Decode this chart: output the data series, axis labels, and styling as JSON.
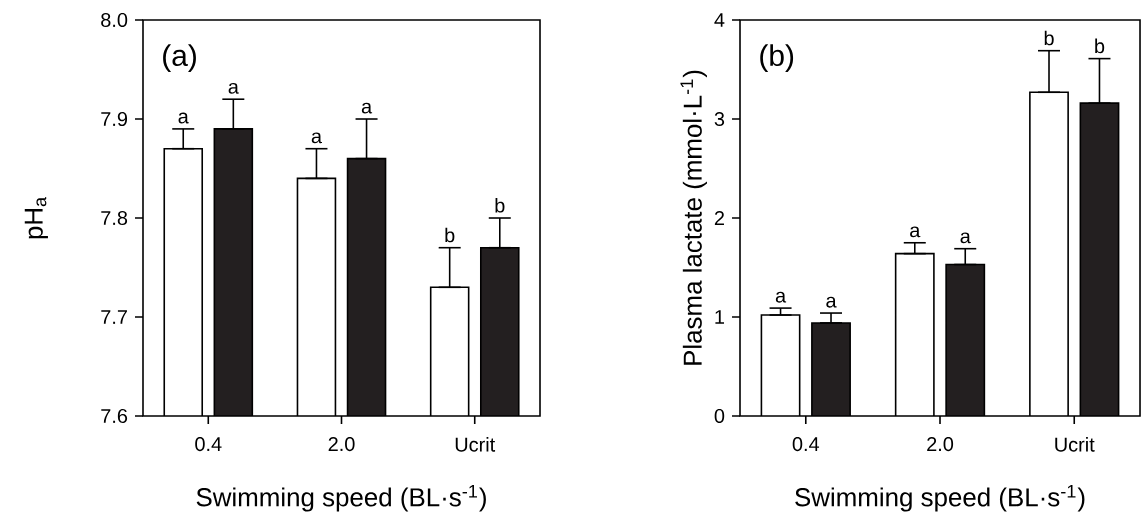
{
  "chart_data": [
    {
      "type": "bar",
      "xlabel": "Swimming speed (BL·s$^{-1}$)",
      "ylabel": "pH$_{a}$",
      "categories": [
        "0.4",
        "2.0",
        "Ucrit"
      ],
      "series": [
        {
          "color": "#ffffff",
          "values": [
            7.87,
            7.84,
            7.73
          ],
          "errors": [
            [
              7.87,
              7.89
            ],
            [
              7.84,
              7.87
            ],
            [
              7.73,
              7.77
            ]
          ]
        },
        {
          "color": "#231f20",
          "values": [
            7.89,
            7.86,
            7.77
          ],
          "errors": [
            [
              7.89,
              7.92
            ],
            [
              7.86,
              7.9
            ],
            [
              7.77,
              7.8
            ]
          ]
        }
      ],
      "ylim": [
        7.6,
        8.0
      ],
      "yticks": [
        7.6,
        7.7,
        7.8,
        7.9,
        {
          "value": 8.0,
          "label": "8.0"
        }
      ],
      "annotations": [
        "(a)",
        "a",
        "a",
        "a",
        "a",
        "b",
        "b"
      ]
    },
    {
      "type": "bar",
      "xlabel": "Swimming speed (BL·s$^{-1}$)",
      "ylabel": "Plasma lactate (mmol·L$^{-1}$)",
      "categories": [
        "0.4",
        "2.0",
        "Ucrit"
      ],
      "series": [
        {
          "color": "#ffffff",
          "values": [
            1.02,
            1.64,
            3.27
          ],
          "errors": [
            [
              1.02,
              1.09
            ],
            [
              1.64,
              1.75
            ],
            [
              3.27,
              3.69
            ]
          ]
        },
        {
          "color": "#231f20",
          "values": [
            0.94,
            1.53,
            3.16
          ],
          "errors": [
            [
              0.94,
              1.04
            ],
            [
              1.53,
              1.69
            ],
            [
              3.16,
              3.61
            ]
          ]
        }
      ],
      "ylim": [
        0,
        4
      ],
      "yticks": [
        0,
        1,
        2,
        3,
        4
      ],
      "annotations": [
        "(b)",
        "a",
        "a",
        "a",
        "a",
        "b",
        "b"
      ]
    }
  ]
}
